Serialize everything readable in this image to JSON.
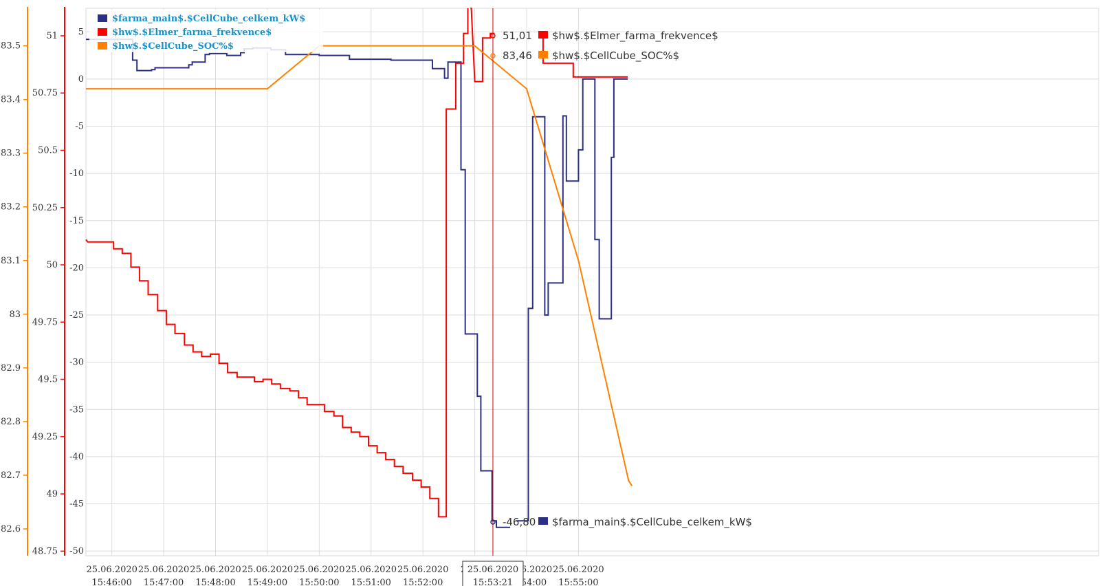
{
  "chart_data": {
    "type": "line",
    "title": "",
    "legend": {
      "placement": "top-left",
      "entries": [
        {
          "label": "$farma_main$.$CellCube_celkem_kW$",
          "color": "#2b2f85"
        },
        {
          "label": "$hw$.$Elmer_farma_frekvence$",
          "color": "#ff0000"
        },
        {
          "label": "$hw$.$CellCube_SOC%$",
          "color": "#ff8000"
        }
      ]
    },
    "axes": {
      "soc": {
        "color": "#ff8000",
        "range": [
          82.55,
          83.57
        ],
        "ticks": [
          83.5,
          83.4,
          83.3,
          83.2,
          83.1,
          83,
          82.9,
          82.8,
          82.7,
          82.6
        ],
        "labels": [
          "83.5",
          "83.4",
          "83.3",
          "83.2",
          "83.1",
          "83",
          "82.9",
          "82.8",
          "82.7",
          "82.6"
        ]
      },
      "freq": {
        "color": "#ff0000",
        "range": [
          48.73,
          51.12
        ],
        "ticks": [
          51,
          50.75,
          50.5,
          50.25,
          50,
          49.75,
          49.5,
          49.25,
          49,
          48.75
        ],
        "labels": [
          "51",
          "50.75",
          "50.5",
          "50.25",
          "50",
          "49.75",
          "49.5",
          "49.25",
          "49",
          "48.75"
        ]
      },
      "kw": {
        "range": [
          -50.5,
          7.5
        ],
        "ticks": [
          5,
          0,
          -5,
          -10,
          -15,
          -20,
          -25,
          -30,
          -35,
          -40,
          -45,
          -50
        ],
        "labels": [
          "5",
          "0",
          "-5",
          "-10",
          "-15",
          "-20",
          "-25",
          "-30",
          "-35",
          "-40",
          "-45",
          "-50"
        ]
      },
      "x": {
        "range_sec": [
          5130,
          6302
        ],
        "grid": true,
        "ticks": [
          {
            "t": 5160,
            "date": "25.06.2020",
            "time": "15:46:00"
          },
          {
            "t": 5220,
            "date": "25.06.2020",
            "time": "15:47:00"
          },
          {
            "t": 5280,
            "date": "25.06.2020",
            "time": "15:48:00"
          },
          {
            "t": 5340,
            "date": "25.06.2020",
            "time": "15:49:00"
          },
          {
            "t": 5400,
            "date": "25.06.2020",
            "time": "15:50:00"
          },
          {
            "t": 5460,
            "date": "25.06.2020",
            "time": "15:51:00"
          },
          {
            "t": 5520,
            "date": "25.06.2020",
            "time": "15:52:00"
          },
          {
            "t": 5580,
            "date": "25.06.",
            "time": "15:53"
          },
          {
            "t": 5640,
            "date": "25.06.2020",
            "time": "15:54:00"
          },
          {
            "t": 5700,
            "date": "25.06.2020",
            "time": "15:55:00"
          }
        ]
      }
    },
    "cursor": {
      "t": 5601,
      "date": "25.06.2020",
      "time": "15:53:21",
      "readouts": [
        {
          "value": "51,01",
          "label": "$hw$.$Elmer_farma_frekvence$",
          "color": "#ff0000"
        },
        {
          "value": "83,46",
          "label": "$hw$.$CellCube_SOC%$",
          "color": "#ff8000"
        },
        {
          "value": "-46,80",
          "label": "$farma_main$.$CellCube_celkem_kW$",
          "color": "#2b2f85"
        }
      ]
    },
    "series": [
      {
        "name": "$farma_main$.$CellCube_celkem_kW$",
        "axis": "kw",
        "color": "#2b2f85",
        "points": [
          [
            5130,
            4.2
          ],
          [
            5184,
            4.2
          ],
          [
            5184,
            2
          ],
          [
            5189,
            2
          ],
          [
            5189,
            0.9
          ],
          [
            5206,
            0.9
          ],
          [
            5206,
            1
          ],
          [
            5210,
            1
          ],
          [
            5210,
            1.2
          ],
          [
            5249,
            1.2
          ],
          [
            5249,
            1.5
          ],
          [
            5253,
            1.5
          ],
          [
            5253,
            1.8
          ],
          [
            5268,
            1.8
          ],
          [
            5268,
            2.6
          ],
          [
            5273,
            2.6
          ],
          [
            5273,
            2.7
          ],
          [
            5293,
            2.7
          ],
          [
            5293,
            2.5
          ],
          [
            5309,
            2.5
          ],
          [
            5309,
            2.8
          ],
          [
            5313,
            2.8
          ],
          [
            5313,
            3.2
          ],
          [
            5323,
            3.2
          ],
          [
            5323,
            3.3
          ],
          [
            5344,
            3.3
          ],
          [
            5344,
            3.1
          ],
          [
            5361,
            3.1
          ],
          [
            5361,
            2.6
          ],
          [
            5375,
            2.6
          ],
          [
            5375,
            2.6
          ],
          [
            5400,
            2.6
          ],
          [
            5400,
            2.5
          ],
          [
            5435,
            2.5
          ],
          [
            5435,
            2.1
          ],
          [
            5483,
            2.1
          ],
          [
            5483,
            2.0
          ],
          [
            5531,
            2.0
          ],
          [
            5531,
            1.1
          ],
          [
            5545,
            1.1
          ],
          [
            5545,
            0.1
          ],
          [
            5549,
            0.1
          ],
          [
            5549,
            1.8
          ],
          [
            5564,
            1.8
          ],
          [
            5564,
            -9.6
          ],
          [
            5569,
            -9.6
          ],
          [
            5569,
            -27
          ],
          [
            5583,
            -27
          ],
          [
            5583,
            -33.6
          ],
          [
            5587,
            -33.6
          ],
          [
            5587,
            -41.5
          ],
          [
            5600,
            -41.5
          ],
          [
            5600,
            -46.8
          ],
          [
            5605,
            -46.8
          ],
          [
            5605,
            -47.5
          ],
          [
            5621,
            -47.5
          ]
        ],
        "segments": [
          [
            [
              5628,
              -46.8
            ],
            [
              5642,
              -46.8
            ],
            [
              5642,
              -24.3
            ],
            [
              5647,
              -24.3
            ],
            [
              5647,
              -4.0
            ],
            [
              5661,
              -4.0
            ],
            [
              5661,
              -25
            ],
            [
              5665,
              -25
            ],
            [
              5665,
              -21.6
            ],
            [
              5682,
              -21.6
            ],
            [
              5682,
              -3.9
            ],
            [
              5686,
              -3.9
            ],
            [
              5686,
              -10.8
            ],
            [
              5700,
              -10.8
            ],
            [
              5700,
              -7.5
            ],
            [
              5705,
              -7.5
            ],
            [
              5705,
              0
            ],
            [
              5719,
              0
            ],
            [
              5719,
              -17
            ],
            [
              5724,
              -17
            ],
            [
              5724,
              -25.4
            ],
            [
              5738,
              -25.4
            ],
            [
              5738,
              -8.3
            ],
            [
              5741,
              -8.3
            ],
            [
              5741,
              0
            ],
            [
              5757,
              0
            ]
          ]
        ]
      },
      {
        "name": "$hw$.$Elmer_farma_frekvence$",
        "axis": "freq",
        "color": "#ff0000",
        "points": [
          [
            5130,
            50.11
          ],
          [
            5132,
            50.1
          ],
          [
            5162,
            50.1
          ],
          [
            5162,
            50.07
          ],
          [
            5172,
            50.07
          ],
          [
            5172,
            50.05
          ],
          [
            5182,
            50.05
          ],
          [
            5182,
            49.99
          ],
          [
            5192,
            49.99
          ],
          [
            5192,
            49.93
          ],
          [
            5202,
            49.93
          ],
          [
            5202,
            49.87
          ],
          [
            5213,
            49.87
          ],
          [
            5213,
            49.8
          ],
          [
            5223,
            49.8
          ],
          [
            5223,
            49.74
          ],
          [
            5233,
            49.74
          ],
          [
            5233,
            49.7
          ],
          [
            5244,
            49.7
          ],
          [
            5244,
            49.65
          ],
          [
            5254,
            49.65
          ],
          [
            5254,
            49.62
          ],
          [
            5264,
            49.62
          ],
          [
            5264,
            49.6
          ],
          [
            5274,
            49.6
          ],
          [
            5274,
            49.61
          ],
          [
            5284,
            49.61
          ],
          [
            5284,
            49.57
          ],
          [
            5294,
            49.57
          ],
          [
            5294,
            49.53
          ],
          [
            5305,
            49.53
          ],
          [
            5305,
            49.51
          ],
          [
            5325,
            49.51
          ],
          [
            5325,
            49.49
          ],
          [
            5335,
            49.49
          ],
          [
            5335,
            49.5
          ],
          [
            5345,
            49.5
          ],
          [
            5345,
            49.48
          ],
          [
            5355,
            49.48
          ],
          [
            5355,
            49.46
          ],
          [
            5366,
            49.46
          ],
          [
            5366,
            49.45
          ],
          [
            5376,
            49.45
          ],
          [
            5376,
            49.42
          ],
          [
            5386,
            49.42
          ],
          [
            5386,
            49.39
          ],
          [
            5406,
            49.39
          ],
          [
            5406,
            49.36
          ],
          [
            5417,
            49.36
          ],
          [
            5417,
            49.34
          ],
          [
            5427,
            49.34
          ],
          [
            5427,
            49.29
          ],
          [
            5437,
            49.29
          ],
          [
            5437,
            49.27
          ],
          [
            5447,
            49.27
          ],
          [
            5447,
            49.25
          ],
          [
            5457,
            49.25
          ],
          [
            5457,
            49.21
          ],
          [
            5467,
            49.21
          ],
          [
            5467,
            49.18
          ],
          [
            5477,
            49.18
          ],
          [
            5477,
            49.15
          ],
          [
            5487,
            49.15
          ],
          [
            5487,
            49.12
          ],
          [
            5497,
            49.12
          ],
          [
            5497,
            49.09
          ],
          [
            5508,
            49.09
          ],
          [
            5508,
            49.06
          ],
          [
            5518,
            49.06
          ],
          [
            5518,
            49.03
          ],
          [
            5528,
            49.03
          ],
          [
            5528,
            48.98
          ],
          [
            5538,
            48.98
          ],
          [
            5538,
            48.9
          ],
          [
            5547,
            48.9
          ],
          [
            5547,
            50.68
          ],
          [
            5558,
            50.68
          ],
          [
            5558,
            50.88
          ],
          [
            5567,
            50.88
          ],
          [
            5567,
            51.01
          ],
          [
            5572,
            51.01
          ],
          [
            5572,
            51.12
          ]
        ],
        "segments": [
          [
            [
              5575,
              51.12
            ],
            [
              5576,
              51.12
            ],
            [
              5580,
              50.8
            ],
            [
              5589,
              50.8
            ],
            [
              5589,
              50.99
            ],
            [
              5598,
              50.99
            ],
            [
              5598,
              51.01
            ],
            [
              5603,
              51.01
            ]
          ],
          [
            [
              5659,
              51.0
            ],
            [
              5659,
              50.88
            ],
            [
              5694,
              50.88
            ],
            [
              5694,
              50.82
            ],
            [
              5757,
              50.82
            ]
          ]
        ]
      },
      {
        "name": "$hw$.$CellCube_SOC%$",
        "axis": "soc",
        "color": "#ff8000",
        "points": [
          [
            5130,
            83.42
          ],
          [
            5340,
            83.42
          ],
          [
            5400,
            83.5
          ],
          [
            5580,
            83.5
          ],
          [
            5640,
            83.42
          ],
          [
            5700,
            83.1
          ],
          [
            5758,
            82.69
          ],
          [
            5762,
            82.68
          ]
        ]
      }
    ]
  }
}
